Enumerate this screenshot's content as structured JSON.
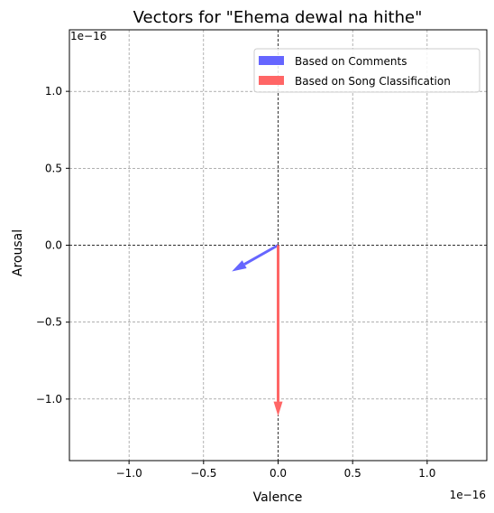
{
  "chart_data": {
    "type": "quiver",
    "title": "Vectors for \"Ehema dewal na hithe\"",
    "xlabel": "Valence",
    "ylabel": "Arousal",
    "xlim": [
      -1.4,
      1.4
    ],
    "ylim": [
      -1.4,
      1.4
    ],
    "axis_scale_label_x": "1e−16",
    "axis_scale_label_y": "1e−16",
    "xticks": [
      -1.0,
      -0.5,
      0.0,
      0.5,
      1.0
    ],
    "yticks": [
      -1.0,
      -0.5,
      0.0,
      0.5,
      1.0
    ],
    "xtick_labels": [
      "−1.0",
      "−0.5",
      "0.0",
      "0.5",
      "1.0"
    ],
    "ytick_labels": [
      "−1.0",
      "−0.5",
      "0.0",
      "0.5",
      "1.0"
    ],
    "grid": true,
    "legend_position": "top-right",
    "series": [
      {
        "name": "Based on Comments",
        "color": "#6666ff",
        "x0": 0,
        "y0": 0,
        "dx": -0.31,
        "dy": -0.17
      },
      {
        "name": "Based on Song Classification",
        "color": "#ff6666",
        "x0": 0,
        "y0": 0,
        "dx": 0.0,
        "dy": -1.11
      }
    ]
  }
}
